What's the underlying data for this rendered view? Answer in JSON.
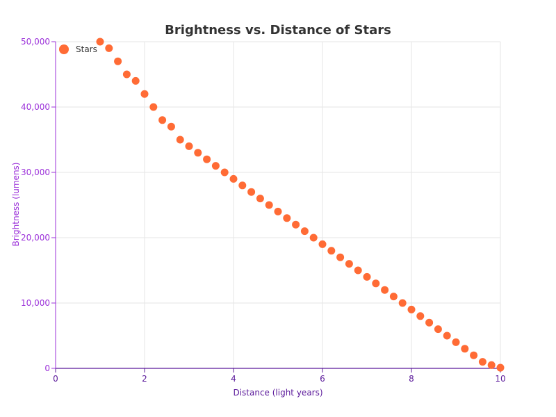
{
  "chart_data": {
    "type": "scatter",
    "title": "Brightness vs. Distance of Stars",
    "xlabel": "Distance (light years)",
    "ylabel": "Brightness (lumens)",
    "xlim": [
      0,
      10
    ],
    "ylim": [
      0,
      50000
    ],
    "x_ticks": [
      0,
      2,
      4,
      6,
      8,
      10
    ],
    "y_ticks": [
      0,
      10000,
      20000,
      30000,
      40000,
      50000
    ],
    "x_tick_labels": [
      "0",
      "2",
      "4",
      "6",
      "8",
      "10"
    ],
    "y_tick_labels": [
      "0",
      "10,000",
      "20,000",
      "30,000",
      "40,000",
      "50,000"
    ],
    "grid": true,
    "legend": {
      "position": "top-left",
      "entries": [
        "Stars"
      ]
    },
    "series": [
      {
        "name": "Stars",
        "color": "#ff6b35",
        "points": [
          {
            "x": 1.0,
            "y": 50000
          },
          {
            "x": 1.2,
            "y": 49000
          },
          {
            "x": 1.4,
            "y": 47000
          },
          {
            "x": 1.6,
            "y": 45000
          },
          {
            "x": 1.8,
            "y": 44000
          },
          {
            "x": 2.0,
            "y": 42000
          },
          {
            "x": 2.2,
            "y": 40000
          },
          {
            "x": 2.4,
            "y": 38000
          },
          {
            "x": 2.6,
            "y": 37000
          },
          {
            "x": 2.8,
            "y": 35000
          },
          {
            "x": 3.0,
            "y": 34000
          },
          {
            "x": 3.2,
            "y": 33000
          },
          {
            "x": 3.4,
            "y": 32000
          },
          {
            "x": 3.6,
            "y": 31000
          },
          {
            "x": 3.8,
            "y": 30000
          },
          {
            "x": 4.0,
            "y": 29000
          },
          {
            "x": 4.2,
            "y": 28000
          },
          {
            "x": 4.4,
            "y": 27000
          },
          {
            "x": 4.6,
            "y": 26000
          },
          {
            "x": 4.8,
            "y": 25000
          },
          {
            "x": 5.0,
            "y": 24000
          },
          {
            "x": 5.2,
            "y": 23000
          },
          {
            "x": 5.4,
            "y": 22000
          },
          {
            "x": 5.6,
            "y": 21000
          },
          {
            "x": 5.8,
            "y": 20000
          },
          {
            "x": 6.0,
            "y": 19000
          },
          {
            "x": 6.2,
            "y": 18000
          },
          {
            "x": 6.4,
            "y": 17000
          },
          {
            "x": 6.6,
            "y": 16000
          },
          {
            "x": 6.8,
            "y": 15000
          },
          {
            "x": 7.0,
            "y": 14000
          },
          {
            "x": 7.2,
            "y": 13000
          },
          {
            "x": 7.4,
            "y": 12000
          },
          {
            "x": 7.6,
            "y": 11000
          },
          {
            "x": 7.8,
            "y": 10000
          },
          {
            "x": 8.0,
            "y": 9000
          },
          {
            "x": 8.2,
            "y": 8000
          },
          {
            "x": 8.4,
            "y": 7000
          },
          {
            "x": 8.6,
            "y": 6000
          },
          {
            "x": 8.8,
            "y": 5000
          },
          {
            "x": 9.0,
            "y": 4000
          },
          {
            "x": 9.2,
            "y": 3000
          },
          {
            "x": 9.4,
            "y": 2000
          },
          {
            "x": 9.6,
            "y": 1000
          },
          {
            "x": 9.8,
            "y": 500
          },
          {
            "x": 10.0,
            "y": 100
          }
        ]
      }
    ],
    "colors": {
      "axis": "#5a189a",
      "tick_label": "#9b30d9",
      "grid": "#e6e6e6",
      "title": "#333333"
    }
  }
}
